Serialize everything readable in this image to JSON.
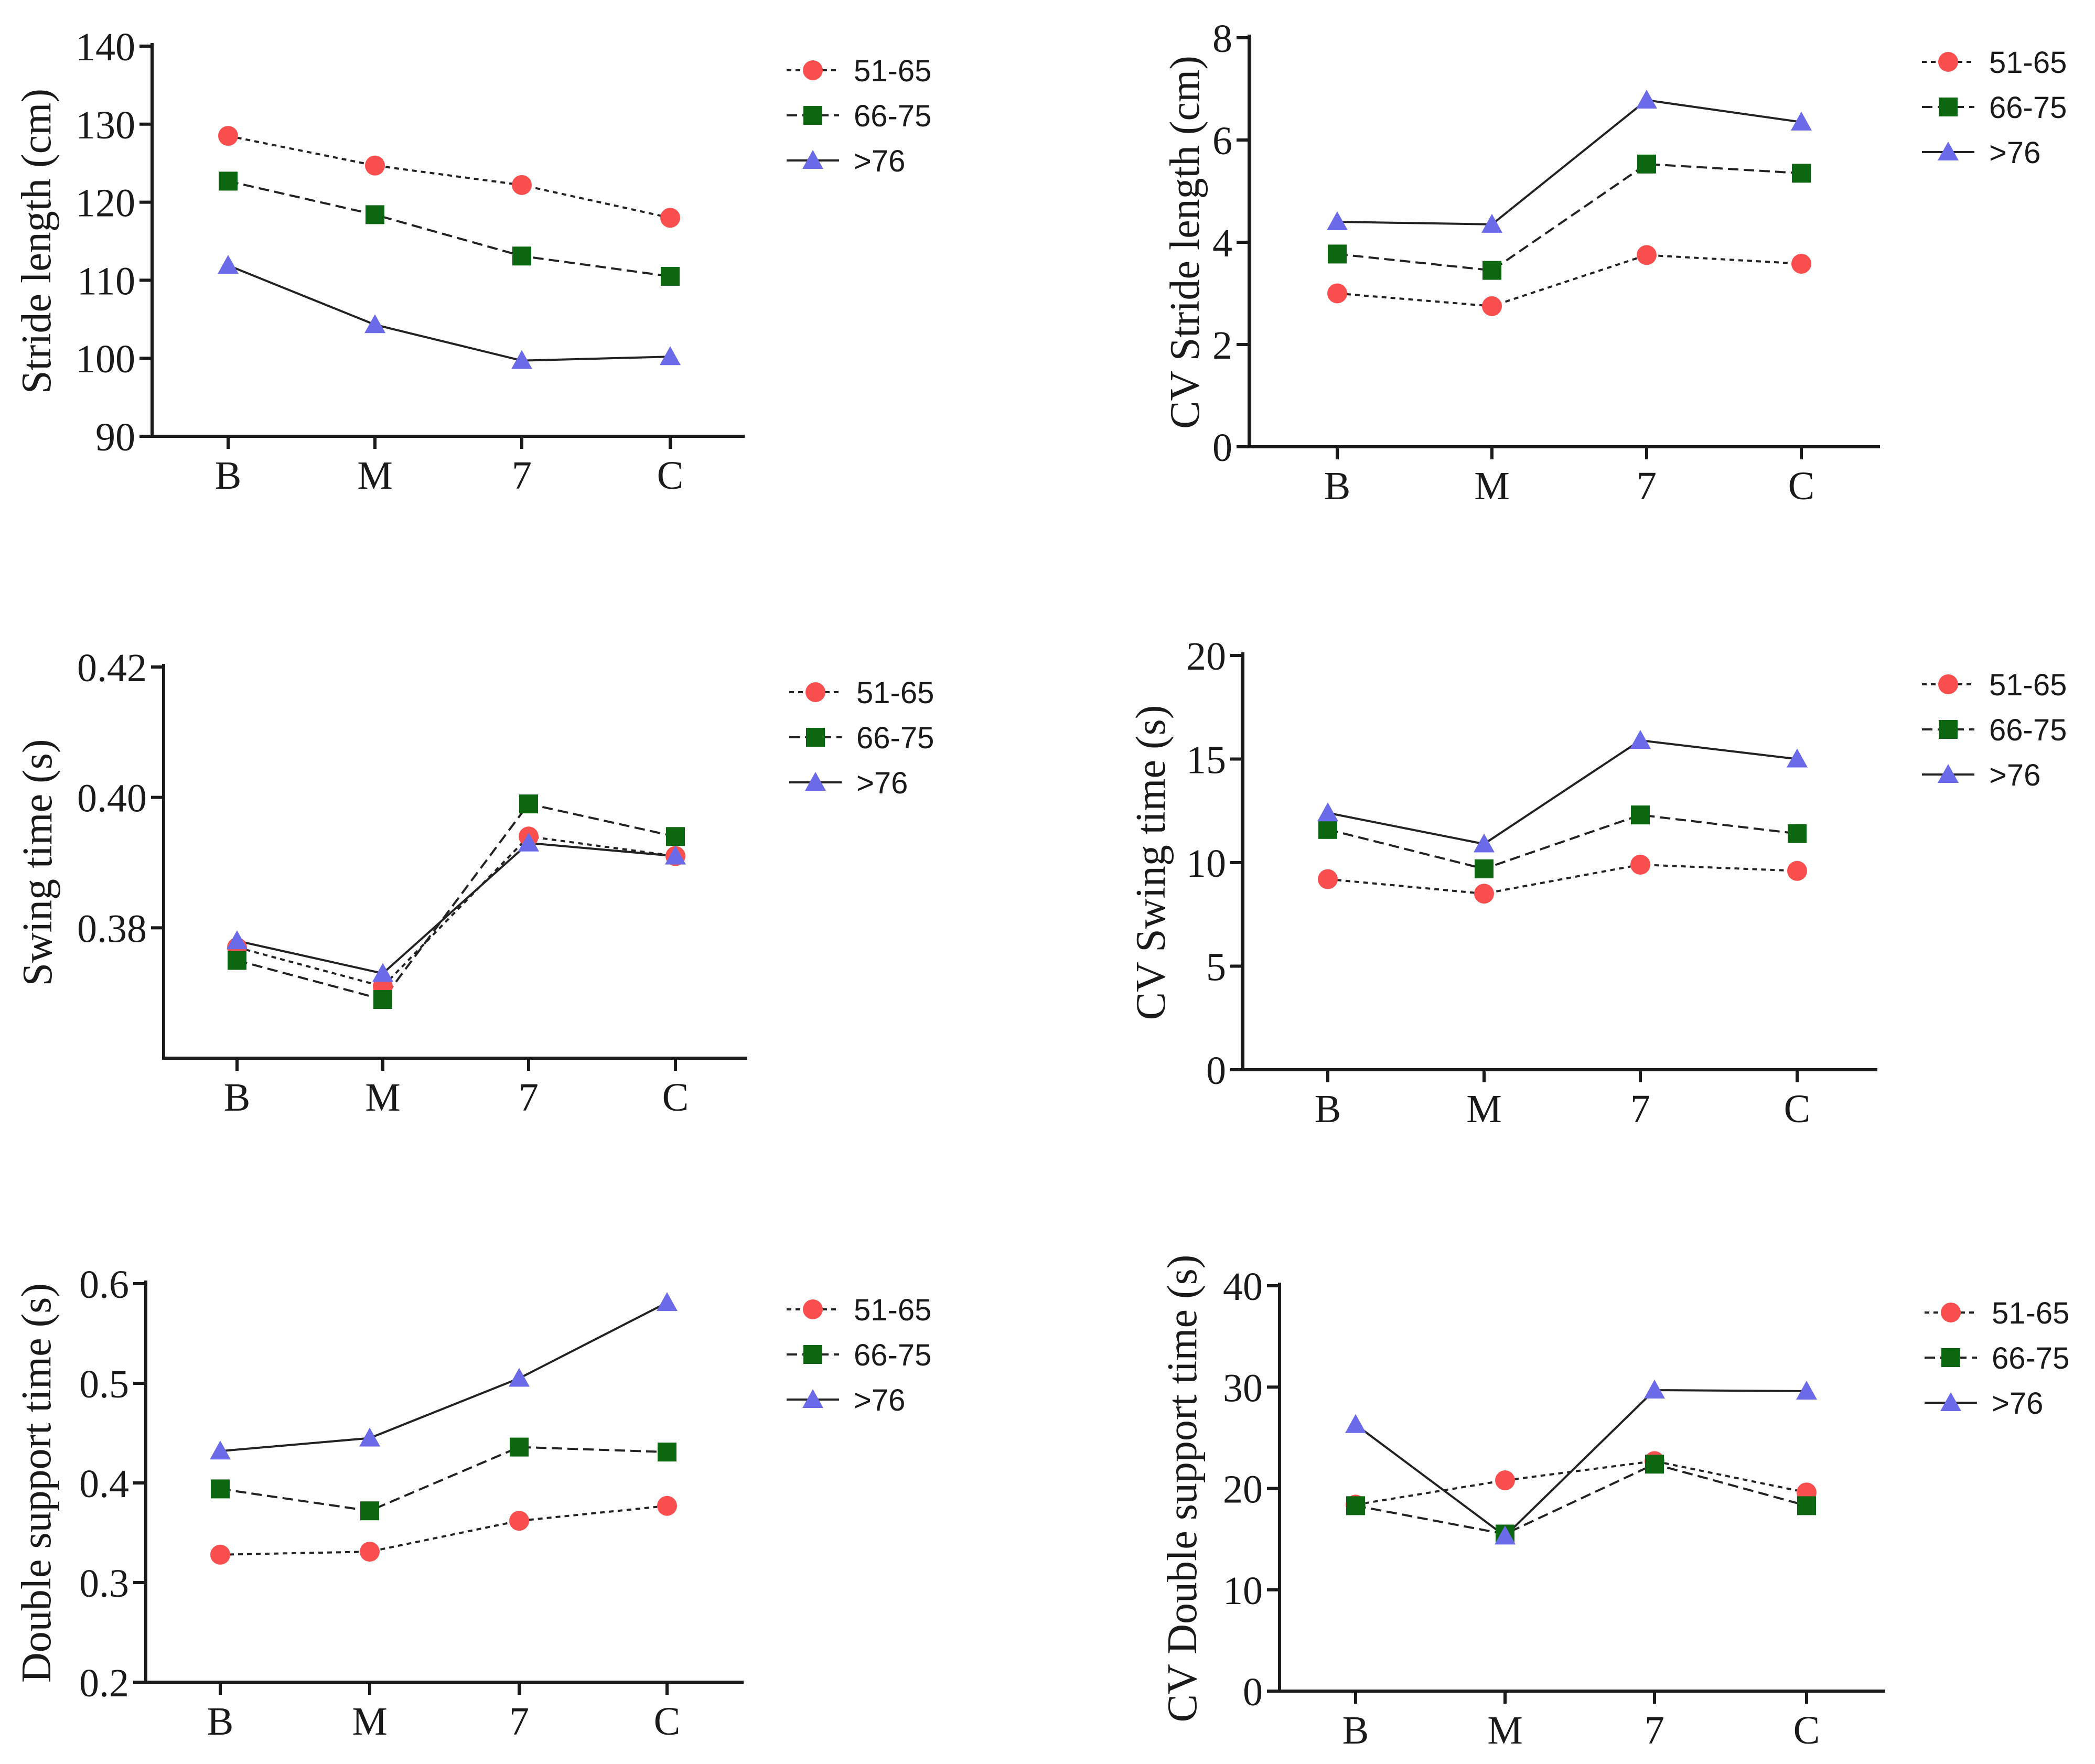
{
  "colors": {
    "series_51_65": "#fb4f4f",
    "series_66_75": "#0d6610",
    "series_76": "#6b6bea",
    "axis": "#1a1a1a"
  },
  "chart_data": [
    {
      "id": "stride-length",
      "type": "line",
      "title": "",
      "xlabel": "",
      "ylabel": "Stride length (cm)",
      "categories": [
        "B",
        "M",
        "7",
        "C"
      ],
      "ylim": [
        90,
        140
      ],
      "yticks": [
        90,
        100,
        110,
        120,
        130,
        140
      ],
      "ytick_labels": [
        "90",
        "100",
        "110",
        "120",
        "130",
        "140"
      ],
      "legend": "right",
      "series": [
        {
          "name": "51-65",
          "marker": "circle",
          "dash": "dotted",
          "values": [
            128.5,
            124.7,
            122.2,
            118.0
          ]
        },
        {
          "name": "66-75",
          "marker": "square",
          "dash": "dashed",
          "values": [
            122.7,
            118.4,
            113.1,
            110.5
          ]
        },
        {
          "name": ">76",
          "marker": "triangle",
          "dash": "solid",
          "values": [
            111.9,
            104.3,
            99.7,
            100.2
          ]
        }
      ]
    },
    {
      "id": "cv-stride-length",
      "type": "line",
      "title": "",
      "xlabel": "",
      "ylabel": "CV Stride length (cm)",
      "categories": [
        "B",
        "M",
        "7",
        "C"
      ],
      "ylim": [
        0,
        8
      ],
      "yticks": [
        0,
        2,
        4,
        6,
        8
      ],
      "ytick_labels": [
        "0",
        "2",
        "4",
        "6",
        "8"
      ],
      "legend": "right",
      "series": [
        {
          "name": "51-65",
          "marker": "circle",
          "dash": "dotted",
          "values": [
            3.0,
            2.75,
            3.75,
            3.58
          ]
        },
        {
          "name": "66-75",
          "marker": "square",
          "dash": "dashed",
          "values": [
            3.77,
            3.45,
            5.53,
            5.35
          ]
        },
        {
          "name": ">76",
          "marker": "triangle",
          "dash": "solid",
          "values": [
            4.4,
            4.35,
            6.78,
            6.35
          ]
        }
      ]
    },
    {
      "id": "swing-time",
      "type": "line",
      "title": "",
      "xlabel": "",
      "ylabel": "Swing time (s)",
      "categories": [
        "B",
        "M",
        "7",
        "C"
      ],
      "ylim": [
        0.36,
        0.42
      ],
      "yticks": [
        0.38,
        0.4,
        0.42
      ],
      "ytick_labels": [
        "0.38",
        "0.40",
        "0.42"
      ],
      "legend": "right",
      "series": [
        {
          "name": "51-65",
          "marker": "circle",
          "dash": "dotted",
          "values": [
            0.377,
            0.371,
            0.394,
            0.391
          ]
        },
        {
          "name": "66-75",
          "marker": "square",
          "dash": "dashed",
          "values": [
            0.375,
            0.369,
            0.399,
            0.394
          ]
        },
        {
          "name": ">76",
          "marker": "triangle",
          "dash": "solid",
          "values": [
            0.378,
            0.373,
            0.393,
            0.391
          ]
        }
      ]
    },
    {
      "id": "cv-swing-time",
      "type": "line",
      "title": "",
      "xlabel": "",
      "ylabel": "CV Swing time (s)",
      "categories": [
        "B",
        "M",
        "7",
        "C"
      ],
      "ylim": [
        0,
        20
      ],
      "yticks": [
        0,
        5,
        10,
        15,
        20
      ],
      "ytick_labels": [
        "0",
        "5",
        "10",
        "15",
        "20"
      ],
      "legend": "right",
      "series": [
        {
          "name": "51-65",
          "marker": "circle",
          "dash": "dotted",
          "values": [
            9.2,
            8.5,
            9.9,
            9.6
          ]
        },
        {
          "name": "66-75",
          "marker": "square",
          "dash": "dashed",
          "values": [
            11.6,
            9.7,
            12.3,
            11.4
          ]
        },
        {
          "name": ">76",
          "marker": "triangle",
          "dash": "solid",
          "values": [
            12.4,
            10.9,
            15.9,
            15.0
          ]
        }
      ]
    },
    {
      "id": "double-support-time",
      "type": "line",
      "title": "",
      "xlabel": "",
      "ylabel": "Double support time (s)",
      "categories": [
        "B",
        "M",
        "7",
        "C"
      ],
      "ylim": [
        0.2,
        0.6
      ],
      "yticks": [
        0.2,
        0.3,
        0.4,
        0.5,
        0.6
      ],
      "ytick_labels": [
        "0.2",
        "0.3",
        "0.4",
        "0.5",
        "0.6"
      ],
      "legend": "right",
      "series": [
        {
          "name": "51-65",
          "marker": "circle",
          "dash": "dotted",
          "values": [
            0.328,
            0.331,
            0.362,
            0.377
          ]
        },
        {
          "name": "66-75",
          "marker": "square",
          "dash": "dashed",
          "values": [
            0.394,
            0.372,
            0.436,
            0.431
          ]
        },
        {
          "name": ">76",
          "marker": "triangle",
          "dash": "solid",
          "values": [
            0.432,
            0.445,
            0.505,
            0.581
          ]
        }
      ]
    },
    {
      "id": "cv-double-support-time",
      "type": "line",
      "title": "",
      "xlabel": "",
      "ylabel": "CV Double support time (s)",
      "categories": [
        "B",
        "M",
        "7",
        "C"
      ],
      "ylim": [
        0,
        40
      ],
      "yticks": [
        0,
        10,
        20,
        30,
        40
      ],
      "ytick_labels": [
        "0",
        "10",
        "20",
        "30",
        "40"
      ],
      "legend": "right",
      "series": [
        {
          "name": "51-65",
          "marker": "circle",
          "dash": "dotted",
          "values": [
            18.4,
            20.8,
            22.7,
            19.6
          ]
        },
        {
          "name": "66-75",
          "marker": "square",
          "dash": "dashed",
          "values": [
            18.3,
            15.5,
            22.4,
            18.3
          ]
        },
        {
          "name": ">76",
          "marker": "triangle",
          "dash": "solid",
          "values": [
            26.3,
            15.3,
            29.7,
            29.6
          ]
        }
      ]
    }
  ]
}
